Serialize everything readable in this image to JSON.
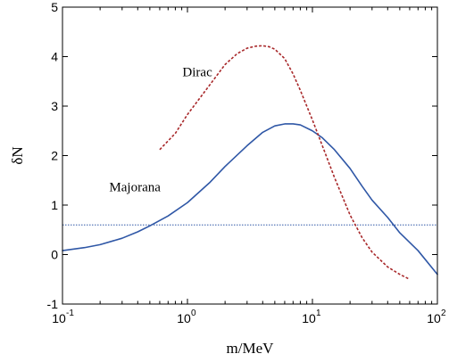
{
  "chart_data": {
    "type": "line",
    "xlabel": "m/MeV",
    "ylabel": "δN",
    "x_scale": "log",
    "xlim": [
      0.1,
      100
    ],
    "ylim": [
      -1,
      5
    ],
    "x_ticks": [
      {
        "value": 0.1,
        "base": "10",
        "exp": "-1"
      },
      {
        "value": 1,
        "base": "10",
        "exp": "0"
      },
      {
        "value": 10,
        "base": "10",
        "exp": "1"
      },
      {
        "value": 100,
        "base": "10",
        "exp": "2"
      }
    ],
    "y_ticks": [
      "-1",
      "0",
      "1",
      "2",
      "3",
      "4",
      "5"
    ],
    "grid": false,
    "series": [
      {
        "name": "Majorana",
        "color": "#2f57a6",
        "style": "solid",
        "x": [
          0.1,
          0.15,
          0.2,
          0.3,
          0.4,
          0.5,
          0.7,
          1,
          1.5,
          2,
          3,
          4,
          5,
          6,
          7,
          8,
          10,
          12,
          15,
          20,
          25,
          30,
          40,
          50,
          70,
          100
        ],
        "y": [
          0.08,
          0.14,
          0.2,
          0.33,
          0.46,
          0.58,
          0.78,
          1.05,
          1.45,
          1.78,
          2.2,
          2.47,
          2.6,
          2.64,
          2.64,
          2.62,
          2.5,
          2.36,
          2.12,
          1.74,
          1.38,
          1.1,
          0.75,
          0.44,
          0.08,
          -0.4
        ]
      },
      {
        "name": "Dirac",
        "color": "#a8282a",
        "style": "dashed",
        "x": [
          0.6,
          0.8,
          1,
          1.5,
          2,
          2.5,
          3,
          3.5,
          4,
          4.5,
          5,
          6,
          7,
          8,
          10,
          12,
          15,
          20,
          25,
          30,
          40,
          50,
          60
        ],
        "y": [
          2.12,
          2.45,
          2.83,
          3.42,
          3.84,
          4.06,
          4.17,
          4.21,
          4.22,
          4.2,
          4.15,
          3.96,
          3.65,
          3.32,
          2.72,
          2.2,
          1.56,
          0.8,
          0.34,
          0.05,
          -0.25,
          -0.4,
          -0.5
        ]
      }
    ],
    "reference_line": {
      "y": 0.6,
      "color": "#2f57a6",
      "style": "dotted"
    },
    "annotations": [
      {
        "text": "Dirac",
        "x": 1.2,
        "y": 3.6
      },
      {
        "text": "Majorana",
        "x": 0.38,
        "y": 1.28
      }
    ]
  }
}
